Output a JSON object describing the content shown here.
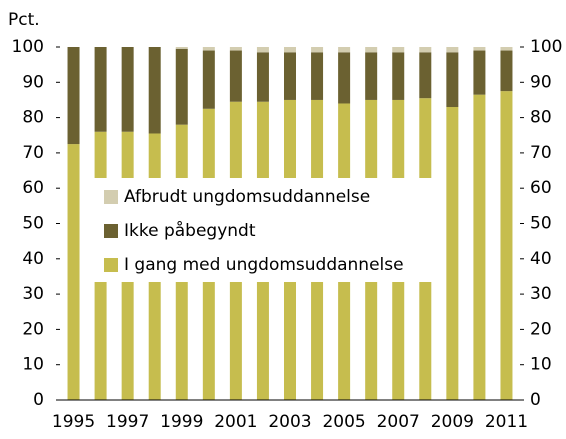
{
  "chart_data": {
    "type": "bar",
    "stacked": true,
    "y_unit_label": "Pct.",
    "categories": [
      "1995",
      null,
      "1997",
      null,
      "1999",
      null,
      "2001",
      null,
      "2003",
      null,
      "2005",
      null,
      "2007",
      null,
      "2009",
      null,
      "2011"
    ],
    "series": [
      {
        "name": "I gang med ungdomsuddannelse",
        "color": "#c6bd4e",
        "values": [
          72.5,
          76,
          76,
          75.5,
          78,
          82.5,
          84.5,
          84.5,
          85,
          85,
          84,
          85,
          85,
          85.5,
          83,
          86.5,
          87.5
        ]
      },
      {
        "name": "Ikke påbegyndt",
        "color": "#6b6131",
        "values": [
          27.5,
          24,
          24,
          24.5,
          21.5,
          16.5,
          14.5,
          14,
          13.5,
          13.5,
          14.5,
          13.5,
          13.5,
          13,
          15.5,
          12.5,
          11.5
        ]
      },
      {
        "name": "Afbrudt ungdomsuddannelse",
        "color": "#d3cdb0",
        "values": [
          0,
          0,
          0,
          0,
          0.5,
          1,
          1,
          1.5,
          1.5,
          1.5,
          1.5,
          1.5,
          1.5,
          1.5,
          1.5,
          1,
          1
        ]
      }
    ],
    "ylim": [
      0,
      100
    ],
    "yticks": [
      0,
      10,
      20,
      30,
      40,
      50,
      60,
      70,
      80,
      90,
      100
    ],
    "y2lim": [
      0,
      100
    ],
    "y2ticks": [
      0,
      10,
      20,
      30,
      40,
      50,
      60,
      70,
      80,
      90,
      100
    ]
  }
}
